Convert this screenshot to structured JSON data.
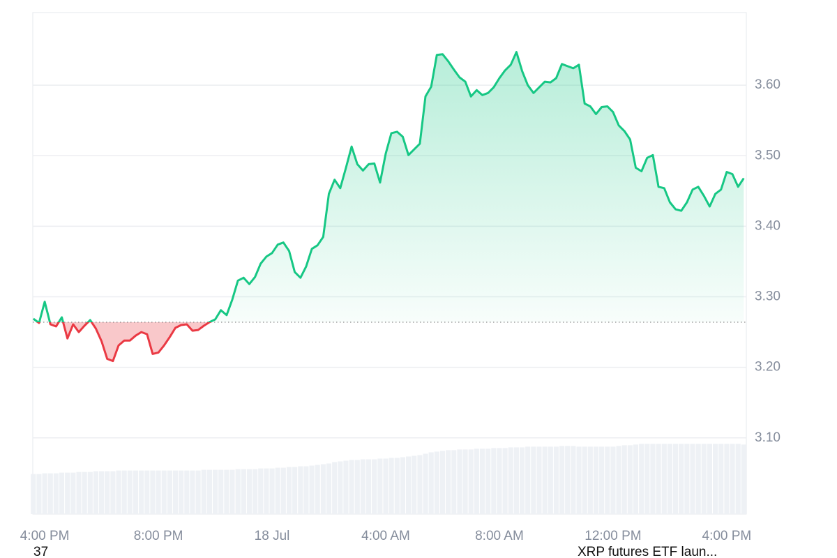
{
  "chart_data": {
    "type": "line",
    "x": [
      -0.4,
      -0.2,
      0,
      0.2,
      0.4,
      0.6,
      0.8,
      1.0,
      1.2,
      1.4,
      1.6,
      1.8,
      2.0,
      2.2,
      2.4,
      2.6,
      2.8,
      3.0,
      3.2,
      3.4,
      3.6,
      3.8,
      4.0,
      4.2,
      4.4,
      4.6,
      4.8,
      5.0,
      5.2,
      5.4,
      5.6,
      5.8,
      6.0,
      6.2,
      6.4,
      6.6,
      6.8,
      7.0,
      7.2,
      7.4,
      7.6,
      7.8,
      8.0,
      8.2,
      8.4,
      8.6,
      8.8,
      9.0,
      9.2,
      9.4,
      9.6,
      9.8,
      10.0,
      10.2,
      10.4,
      10.6,
      10.8,
      11.0,
      11.2,
      11.4,
      11.6,
      11.8,
      12.0,
      12.2,
      12.4,
      12.6,
      12.8,
      13.0,
      13.2,
      13.4,
      13.6,
      13.8,
      14.0,
      14.2,
      14.4,
      14.6,
      14.8,
      15.0,
      15.2,
      15.4,
      15.6,
      15.8,
      16.0,
      16.2,
      16.4,
      16.6,
      16.8,
      17.0,
      17.2,
      17.4,
      17.6,
      17.8,
      18.0,
      18.2,
      18.4,
      18.6,
      18.8,
      19.0,
      19.2,
      19.4,
      19.6,
      19.8,
      20.0,
      20.2,
      20.4,
      20.6,
      20.8,
      21.0,
      21.2,
      21.4,
      21.6,
      21.8,
      22.0,
      22.2,
      22.4,
      22.6,
      22.8,
      23.0,
      23.2,
      23.4,
      23.6,
      23.8,
      24.0,
      24.2,
      24.4,
      24.6
    ],
    "values": [
      3.269,
      3.263,
      3.293,
      3.261,
      3.258,
      3.271,
      3.241,
      3.261,
      3.25,
      3.259,
      3.267,
      3.255,
      3.237,
      3.212,
      3.209,
      3.231,
      3.238,
      3.238,
      3.245,
      3.25,
      3.247,
      3.219,
      3.221,
      3.231,
      3.243,
      3.256,
      3.26,
      3.261,
      3.252,
      3.253,
      3.259,
      3.264,
      3.268,
      3.281,
      3.274,
      3.296,
      3.323,
      3.327,
      3.318,
      3.328,
      3.347,
      3.357,
      3.362,
      3.374,
      3.377,
      3.365,
      3.335,
      3.327,
      3.343,
      3.368,
      3.373,
      3.385,
      3.446,
      3.466,
      3.454,
      3.483,
      3.513,
      3.488,
      3.479,
      3.488,
      3.489,
      3.462,
      3.503,
      3.532,
      3.534,
      3.527,
      3.501,
      3.509,
      3.517,
      3.584,
      3.598,
      3.643,
      3.644,
      3.634,
      3.622,
      3.611,
      3.605,
      3.584,
      3.593,
      3.586,
      3.589,
      3.597,
      3.61,
      3.621,
      3.629,
      3.647,
      3.62,
      3.6,
      3.589,
      3.597,
      3.605,
      3.604,
      3.61,
      3.63,
      3.627,
      3.624,
      3.629,
      3.574,
      3.57,
      3.559,
      3.569,
      3.57,
      3.562,
      3.543,
      3.535,
      3.523,
      3.483,
      3.478,
      3.497,
      3.501,
      3.456,
      3.454,
      3.434,
      3.424,
      3.422,
      3.434,
      3.452,
      3.456,
      3.443,
      3.428,
      3.446,
      3.452,
      3.477,
      3.474,
      3.456,
      3.468
    ],
    "volume": [
      57,
      57,
      58,
      58,
      58,
      59,
      59,
      59,
      60,
      60,
      60,
      61,
      61,
      61,
      61,
      62,
      62,
      62,
      62,
      62,
      62,
      62,
      62,
      62,
      62,
      62,
      62,
      62,
      62,
      62,
      63,
      63,
      63,
      63,
      63,
      63,
      64,
      64,
      64,
      64,
      65,
      65,
      65,
      66,
      66,
      67,
      67,
      68,
      68,
      69,
      70,
      71,
      72,
      74,
      75,
      76,
      77,
      77,
      78,
      78,
      78,
      79,
      79,
      80,
      80,
      81,
      82,
      83,
      84,
      86,
      88,
      89,
      90,
      91,
      91,
      92,
      92,
      92,
      93,
      93,
      93,
      94,
      94,
      94,
      95,
      95,
      95,
      96,
      96,
      96,
      96,
      96,
      96,
      97,
      97,
      97,
      96,
      96,
      96,
      96,
      96,
      96,
      96,
      97,
      98,
      98,
      99,
      100,
      100,
      100,
      100,
      100,
      100,
      100,
      100,
      100,
      100,
      100,
      100,
      100,
      100,
      100,
      100,
      100,
      100,
      99
    ],
    "baseline": 3.264,
    "up_color": "#16c784",
    "down_color": "#ea3943",
    "volume_color": "#eef1f5",
    "xlim": [
      -0.42,
      24.69
    ],
    "ylim": [
      2.992,
      3.703
    ],
    "xticks": [
      {
        "value": 0,
        "label": "4:00 PM"
      },
      {
        "value": 4,
        "label": "8:00 PM"
      },
      {
        "value": 8,
        "label": "18 Jul"
      },
      {
        "value": 12,
        "label": "4:00 AM"
      },
      {
        "value": 16,
        "label": "8:00 AM"
      },
      {
        "value": 20,
        "label": "12:00 PM"
      },
      {
        "value": 24,
        "label": "4:00 PM"
      }
    ],
    "yticks": [
      {
        "value": 3.1,
        "label": "3.10"
      },
      {
        "value": 3.2,
        "label": "3.20"
      },
      {
        "value": 3.3,
        "label": "3.30"
      },
      {
        "value": 3.4,
        "label": "3.40"
      },
      {
        "value": 3.5,
        "label": "3.50"
      },
      {
        "value": 3.6,
        "label": "3.60"
      }
    ],
    "grid": true,
    "annotations": [
      "37",
      "XRP futures ETF laun..."
    ]
  }
}
